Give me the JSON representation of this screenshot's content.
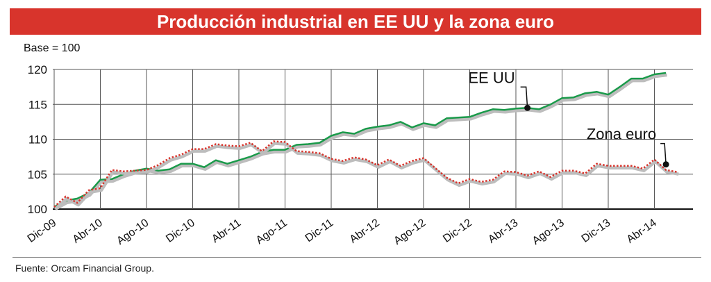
{
  "title": "Producción industrial en EE UU y la zona euro",
  "source": "Fuente: Orcam Financial Group.",
  "colors": {
    "title_bg": "#d8342c",
    "us_line": "#1a9a4a",
    "euro_line": "#d8342c",
    "shadow": "#bdbdbd",
    "grid": "#555555"
  },
  "chart_data": {
    "type": "line",
    "ylabel": "Base = 100",
    "ylim": [
      100,
      120
    ],
    "yticks": [
      100,
      105,
      110,
      115,
      120
    ],
    "x_tick_labels": [
      "Dic-09",
      "Abr-10",
      "Ago-10",
      "Dic-10",
      "Abr-11",
      "Ago-11",
      "Dic-11",
      "Abr-12",
      "Ago-12",
      "Dic-12",
      "Abr-13",
      "Ago-13",
      "Dic-13",
      "Abr-14"
    ],
    "x_range_months": [
      0,
      55
    ],
    "grid": true,
    "series": [
      {
        "name": "EE UU",
        "style": "solid",
        "values": [
          100.3,
          101.2,
          101.5,
          102.3,
          104.2,
          104.3,
          105.0,
          105.5,
          105.8,
          105.5,
          105.7,
          106.5,
          106.5,
          106.0,
          107.0,
          106.5,
          107.0,
          107.5,
          108.2,
          108.5,
          108.5,
          109.2,
          109.3,
          109.5,
          110.5,
          111.0,
          110.8,
          111.5,
          111.8,
          112.0,
          112.5,
          111.7,
          112.3,
          112.0,
          113.0,
          113.1,
          113.2,
          113.8,
          114.3,
          114.2,
          114.4,
          114.5,
          114.3,
          115.0,
          115.9,
          116.0,
          116.6,
          116.8,
          116.4,
          117.5,
          118.7,
          118.7,
          119.3,
          119.5
        ]
      },
      {
        "name": "Zona euro",
        "style": "dotted",
        "values": [
          100.3,
          101.8,
          100.9,
          102.7,
          103.0,
          105.6,
          105.4,
          105.5,
          105.6,
          106.3,
          107.3,
          107.8,
          108.6,
          108.6,
          109.3,
          109.1,
          109.0,
          109.5,
          108.3,
          109.7,
          109.6,
          108.3,
          108.2,
          108.0,
          107.2,
          106.9,
          107.4,
          107.1,
          106.3,
          107.1,
          106.2,
          106.9,
          107.3,
          105.9,
          104.5,
          103.7,
          104.3,
          103.9,
          104.2,
          105.4,
          105.3,
          104.8,
          105.4,
          104.6,
          105.5,
          105.5,
          105.1,
          106.5,
          106.2,
          106.2,
          106.2,
          105.8,
          107.1,
          105.6,
          105.3
        ]
      }
    ],
    "annotations": [
      {
        "text": "EE UU",
        "month": 41,
        "value": 114.5
      },
      {
        "text": "Zona euro",
        "month": 53,
        "value": 106.4
      }
    ]
  }
}
